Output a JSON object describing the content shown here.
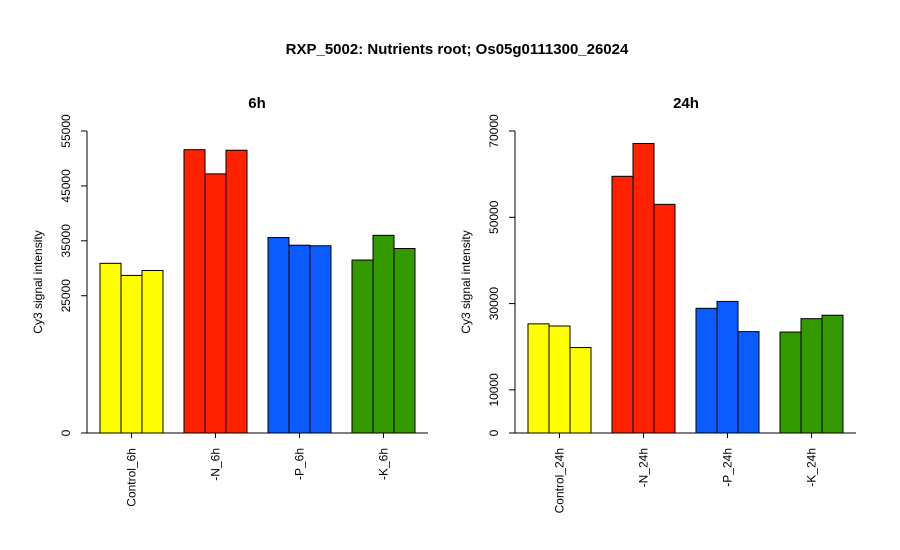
{
  "figure": {
    "title": "RXP_5002: Nutrients root; Os05g0111300_26024"
  },
  "chart_data": [
    {
      "type": "bar",
      "title": "6h",
      "xlabel": "",
      "ylabel": "Cy3 signal intensity",
      "ylim": [
        0,
        55000
      ],
      "yticks": [
        0,
        25000,
        35000,
        45000,
        55000
      ],
      "categories": [
        "Control_6h",
        "-N_6h",
        "-P_6h",
        "-K_6h"
      ],
      "group_colors": [
        "#ffff00",
        "#ff2200",
        "#0a5cff",
        "#339900"
      ],
      "values": [
        [
          30900,
          28700,
          29600
        ],
        [
          51600,
          47200,
          51500
        ],
        [
          35600,
          34200,
          34100
        ],
        [
          31500,
          36000,
          33600
        ]
      ]
    },
    {
      "type": "bar",
      "title": "24h",
      "xlabel": "",
      "ylabel": "Cy3 signal intensity",
      "ylim": [
        0,
        70000
      ],
      "yticks": [
        0,
        10000,
        30000,
        50000,
        70000
      ],
      "categories": [
        "Control_24h",
        "-N_24h",
        "-P_24h",
        "-K_24h"
      ],
      "group_colors": [
        "#ffff00",
        "#ff2200",
        "#0a5cff",
        "#339900"
      ],
      "values": [
        [
          25300,
          24800,
          19800
        ],
        [
          59500,
          67100,
          53000
        ],
        [
          28900,
          30500,
          23500
        ],
        [
          23400,
          26500,
          27300
        ]
      ]
    }
  ]
}
